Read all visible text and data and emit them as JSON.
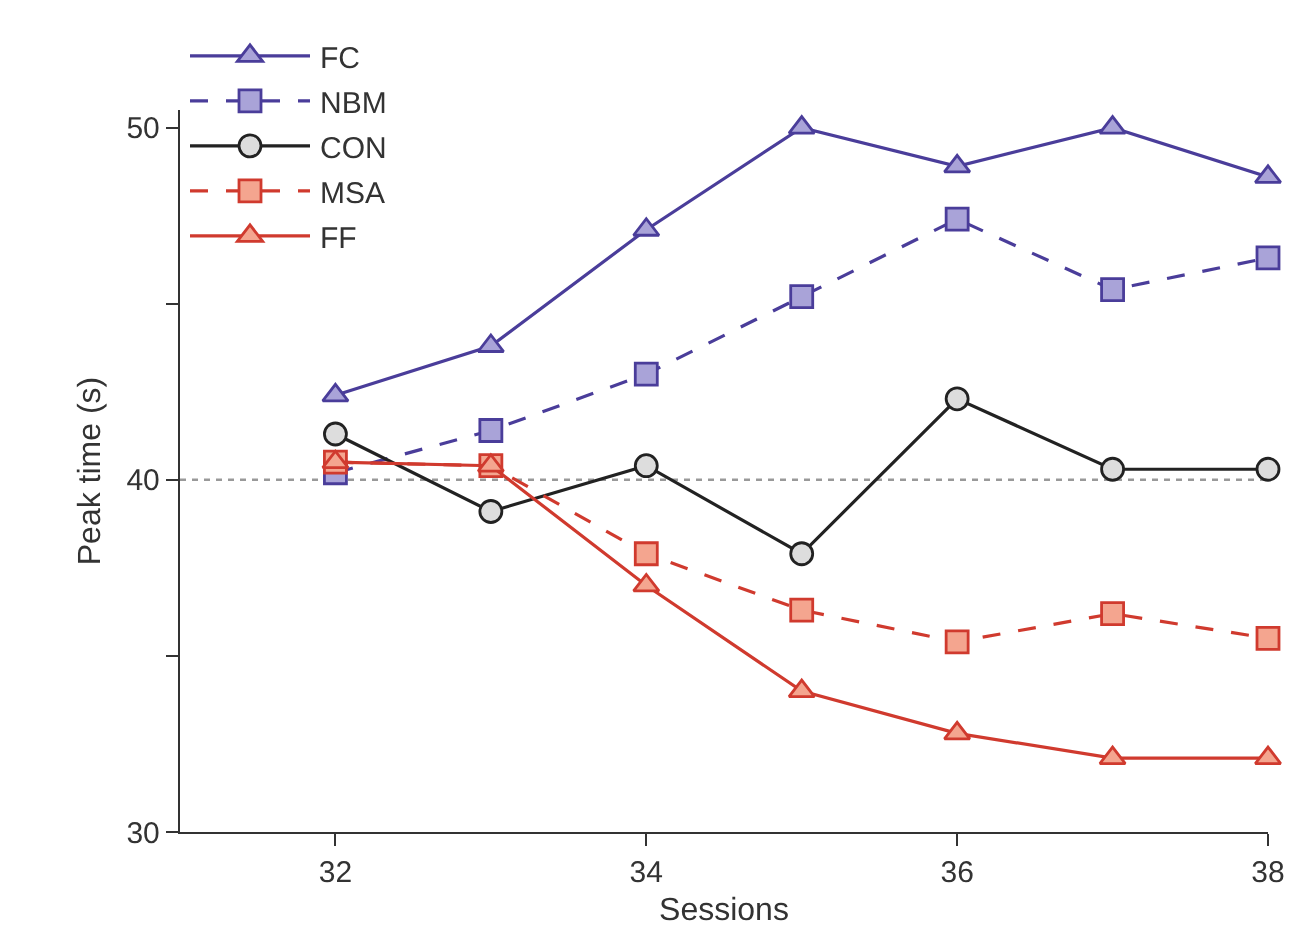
{
  "chart_data": {
    "type": "line",
    "xlabel": "Sessions",
    "ylabel": "Peak time (s)",
    "x": [
      32,
      33,
      34,
      35,
      36,
      37,
      38
    ],
    "series": [
      {
        "name": "FC",
        "color": "#4a3d9a",
        "marker": "triangle",
        "line_style": "solid",
        "values": [
          42.4,
          43.8,
          47.1,
          50.0,
          48.9,
          50.0,
          48.6
        ]
      },
      {
        "name": "NBM",
        "color": "#4a3d9a",
        "marker": "square",
        "line_style": "dashed",
        "values": [
          40.2,
          41.4,
          43.0,
          45.2,
          47.4,
          45.4,
          46.3
        ]
      },
      {
        "name": "CON",
        "color": "#222222",
        "marker": "circle",
        "line_style": "solid",
        "values": [
          41.3,
          39.1,
          40.4,
          37.9,
          42.3,
          40.3,
          40.3
        ]
      },
      {
        "name": "MSA",
        "color": "#d03a2e",
        "marker": "square",
        "line_style": "dashed",
        "values": [
          40.5,
          40.4,
          37.9,
          36.3,
          35.4,
          36.2,
          35.5
        ]
      },
      {
        "name": "FF",
        "color": "#d03a2e",
        "marker": "triangle",
        "line_style": "solid",
        "values": [
          40.5,
          40.4,
          37.0,
          34.0,
          32.8,
          32.1,
          32.1
        ]
      }
    ],
    "xlim": [
      31,
      38
    ],
    "xticks": [
      32,
      34,
      36,
      38
    ],
    "ylim": [
      30,
      50.5
    ],
    "yticks": [
      30,
      {
        "value": 35,
        "label": null
      },
      40,
      {
        "value": 45,
        "label": null
      },
      50
    ],
    "ref_lines": [
      {
        "axis": "y",
        "value": 40,
        "color": "#999999",
        "line_style": "dotted"
      }
    ],
    "grid": false,
    "legend": "top left"
  }
}
